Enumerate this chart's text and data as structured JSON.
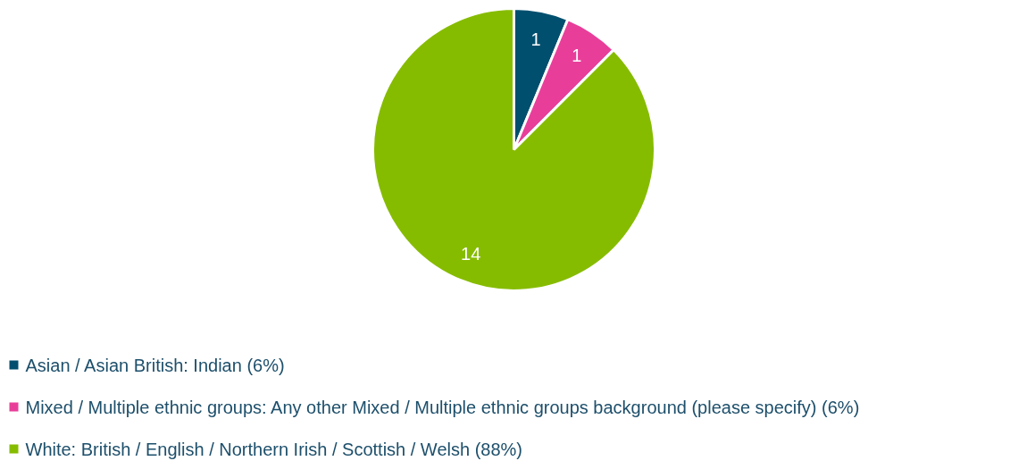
{
  "chart_data": {
    "type": "pie",
    "categories": [
      "Asian / Asian British: Indian (6%)",
      "Mixed / Multiple ethnic groups: Any other Mixed / Multiple ethnic groups background (please specify) (6%)",
      "White: British / English / Northern Irish / Scottish / Welsh (88%)"
    ],
    "values": [
      1,
      1,
      14
    ],
    "colors": [
      "#004f6e",
      "#e83e9a",
      "#86bc00"
    ],
    "data_labels": true,
    "legend": "bottom"
  }
}
